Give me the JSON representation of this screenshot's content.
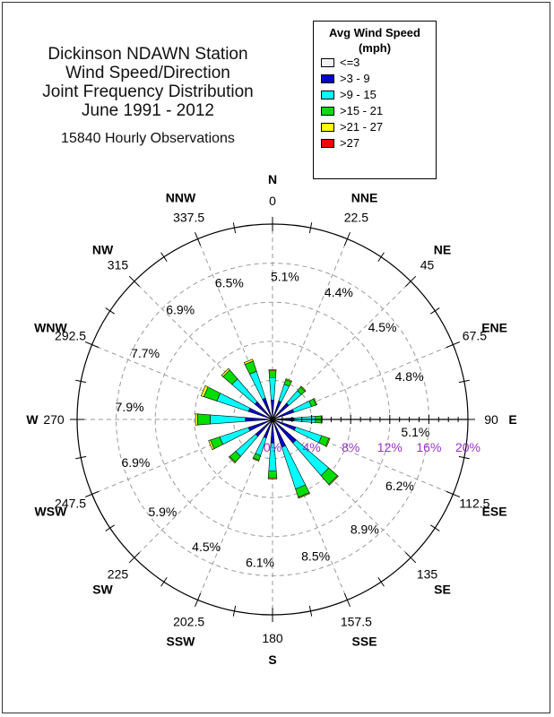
{
  "title": {
    "lines": [
      "Dickinson NDAWN Station",
      "Wind Speed/Direction",
      "Joint Frequency Distribution",
      "June 1991 - 2012"
    ],
    "observations": "15840 Hourly Observations"
  },
  "legend": {
    "title_line1": "Avg Wind Speed",
    "title_line2": "(mph)",
    "items": [
      {
        "label": "<=3",
        "color": "#f2f2f2"
      },
      {
        "label": ">3 - 9",
        "color": "#0000cc"
      },
      {
        "label": ">9 - 15",
        "color": "#00ffff"
      },
      {
        "label": ">15 - 21",
        "color": "#00dd00"
      },
      {
        "label": ">21 - 27",
        "color": "#ffff00"
      },
      {
        "label": ">27",
        "color": "#ff0000"
      }
    ]
  },
  "chart_data": {
    "type": "polar-bar",
    "title": "Dickinson NDAWN Station Wind Speed/Direction Joint Frequency Distribution June 1991 - 2012",
    "ring_labels": [
      "0%",
      "4%",
      "8%",
      "12%",
      "16%",
      "20%"
    ],
    "ring_values": [
      0,
      4,
      8,
      12,
      16,
      20
    ],
    "rmax": 20,
    "speed_bins": [
      "<=3",
      ">3 - 9",
      ">9 - 15",
      ">15 - 21",
      ">21 - 27",
      ">27"
    ],
    "directions": [
      {
        "name": "N",
        "deg": "0",
        "angle": 0,
        "pct": "5.1%"
      },
      {
        "name": "NNE",
        "deg": "22.5",
        "angle": 22.5,
        "pct": "4.4%"
      },
      {
        "name": "NE",
        "deg": "45",
        "angle": 45,
        "pct": "4.5%"
      },
      {
        "name": "ENE",
        "deg": "67.5",
        "angle": 67.5,
        "pct": "4.8%"
      },
      {
        "name": "E",
        "deg": "90",
        "angle": 90,
        "pct": "5.1%"
      },
      {
        "name": "ESE",
        "deg": "112.5",
        "angle": 112.5,
        "pct": "6.2%"
      },
      {
        "name": "SE",
        "deg": "135",
        "angle": 135,
        "pct": "8.9%"
      },
      {
        "name": "SSE",
        "deg": "157.5",
        "angle": 157.5,
        "pct": "8.5%"
      },
      {
        "name": "S",
        "deg": "180",
        "angle": 180,
        "pct": "6.1%"
      },
      {
        "name": "SSW",
        "deg": "202.5",
        "angle": 202.5,
        "pct": "4.5%"
      },
      {
        "name": "SW",
        "deg": "225",
        "angle": 225,
        "pct": "5.9%"
      },
      {
        "name": "WSW",
        "deg": "247.5",
        "angle": 247.5,
        "pct": "6.9%"
      },
      {
        "name": "W",
        "deg": "270",
        "angle": 270,
        "pct": "7.9%"
      },
      {
        "name": "WNW",
        "deg": "292.5",
        "angle": 292.5,
        "pct": "7.7%"
      },
      {
        "name": "NW",
        "deg": "315",
        "angle": 315,
        "pct": "6.9%"
      },
      {
        "name": "NNW",
        "deg": "337.5",
        "angle": 337.5,
        "pct": "6.5%"
      }
    ],
    "series": [
      {
        "name": "<=3",
        "values": [
          0,
          0,
          0,
          0,
          0,
          0,
          0,
          0,
          0,
          0,
          0,
          0,
          0,
          0,
          0,
          0
        ]
      },
      {
        "name": ">3 - 9",
        "values": [
          2.0,
          2.0,
          2.2,
          2.3,
          2.2,
          2.5,
          3.2,
          3.0,
          2.4,
          2.0,
          2.3,
          2.6,
          2.8,
          2.6,
          2.4,
          2.3
        ]
      },
      {
        "name": ">9 - 15",
        "values": [
          2.3,
          1.8,
          1.7,
          1.9,
          2.2,
          2.8,
          4.4,
          4.5,
          2.9,
          1.9,
          2.7,
          3.1,
          3.6,
          3.4,
          3.1,
          2.9
        ]
      },
      {
        "name": ">15 - 21",
        "values": [
          0.7,
          0.5,
          0.5,
          0.5,
          0.6,
          0.8,
          1.2,
          0.9,
          0.7,
          0.5,
          0.8,
          1.0,
          1.3,
          1.4,
          1.2,
          1.1
        ]
      },
      {
        "name": ">21 - 27",
        "values": [
          0.1,
          0.1,
          0.1,
          0.1,
          0.1,
          0.1,
          0.1,
          0.1,
          0.1,
          0.1,
          0.1,
          0.2,
          0.2,
          0.3,
          0.2,
          0.2
        ]
      },
      {
        "name": ">27",
        "values": [
          0,
          0,
          0,
          0,
          0,
          0,
          0,
          0,
          0,
          0,
          0,
          0,
          0,
          0,
          0,
          0
        ]
      }
    ],
    "grid": true
  }
}
